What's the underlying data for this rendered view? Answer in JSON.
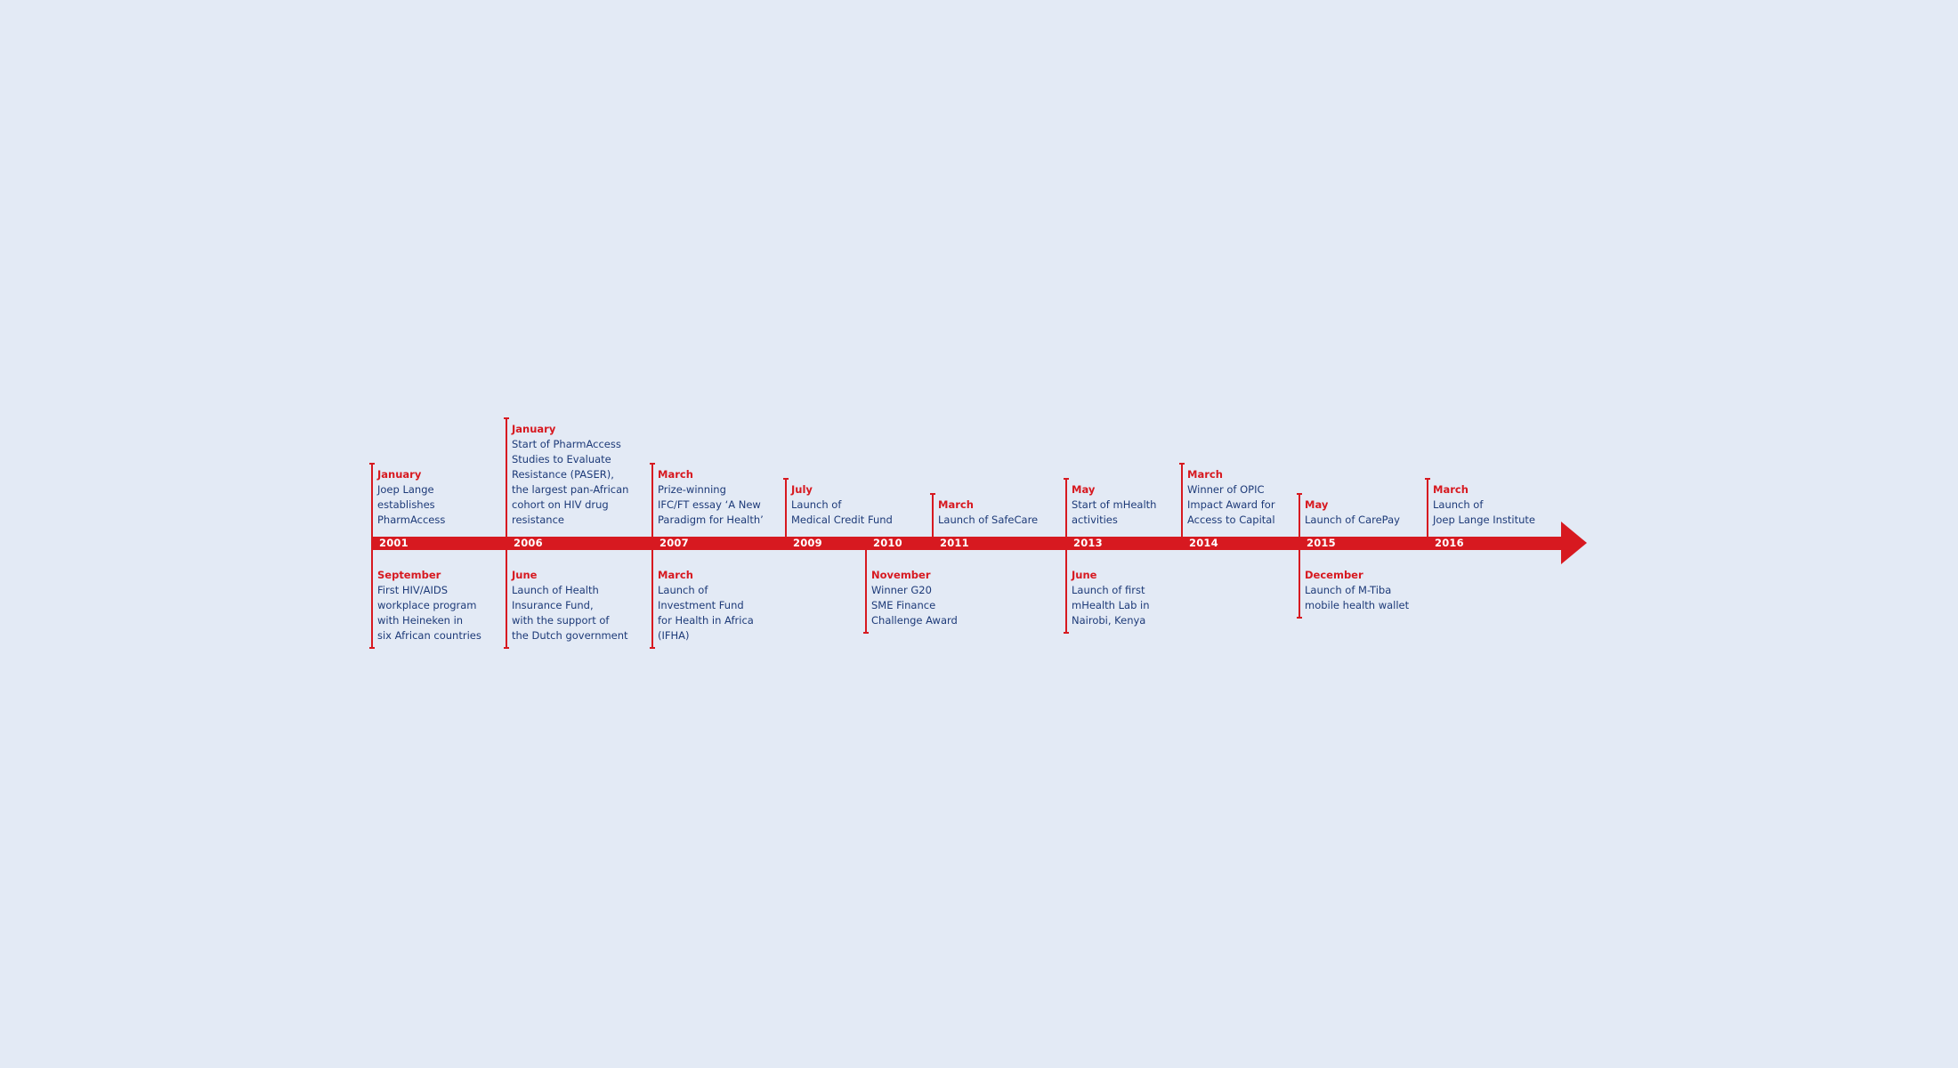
{
  "years": [
    "2001",
    "2006",
    "2007",
    "2009",
    "2010",
    "2011",
    "2013",
    "2014",
    "2015",
    "2016"
  ],
  "events_above": [
    {
      "year": "2001",
      "month": "January",
      "lines": [
        "Joep Lange",
        "establishes",
        "PharmAccess"
      ]
    },
    {
      "year": "2006",
      "month": "January",
      "lines": [
        "Start of PharmAccess",
        "Studies to Evaluate",
        "Resistance (PASER),",
        "the largest pan-African",
        "cohort on HIV drug",
        "resistance"
      ]
    },
    {
      "year": "2007",
      "month": "March",
      "lines": [
        "Prize-winning",
        "IFC/FT essay ‘A New",
        "Paradigm for Health’"
      ]
    },
    {
      "year": "2009",
      "month": "July",
      "lines": [
        "Launch of",
        "Medical Credit Fund"
      ]
    },
    {
      "year": "2011",
      "month": "March",
      "lines": [
        "Launch of SafeCare"
      ]
    },
    {
      "year": "2013",
      "month": "May",
      "lines": [
        "Start of mHealth",
        "activities"
      ]
    },
    {
      "year": "2014",
      "month": "March",
      "lines": [
        "Winner of OPIC",
        "Impact Award for",
        "Access to Capital"
      ]
    },
    {
      "year": "2015",
      "month": "May",
      "lines": [
        "Launch of CarePay"
      ]
    },
    {
      "year": "2016",
      "month": "March",
      "lines": [
        "Launch of",
        "Joep Lange Institute"
      ]
    }
  ],
  "events_below": [
    {
      "year": "2001",
      "month": "September",
      "lines": [
        "First HIV/AIDS",
        "workplace program",
        "with Heineken in",
        "six African countries"
      ]
    },
    {
      "year": "2006",
      "month": "June",
      "lines": [
        "Launch of Health",
        "Insurance Fund,",
        "with the support of",
        "the Dutch government"
      ]
    },
    {
      "year": "2007",
      "month": "March",
      "lines": [
        "Launch of",
        "Investment Fund",
        "for Health in Africa",
        "(IFHA)"
      ]
    },
    {
      "year": "2010",
      "month": "November",
      "lines": [
        "Winner G20",
        "SME Finance",
        "Challenge Award"
      ]
    },
    {
      "year": "2013",
      "month": "June",
      "lines": [
        "Launch of first",
        "mHealth Lab in",
        "Nairobi, Kenya"
      ]
    },
    {
      "year": "2015",
      "month": "December",
      "lines": [
        "Launch of M-Tiba",
        "mobile health wallet"
      ]
    }
  ],
  "colors": {
    "background": "#e3eaf5",
    "accent_red": "#d71920",
    "text_blue": "#1d3a78",
    "year_text": "#ffffff"
  }
}
